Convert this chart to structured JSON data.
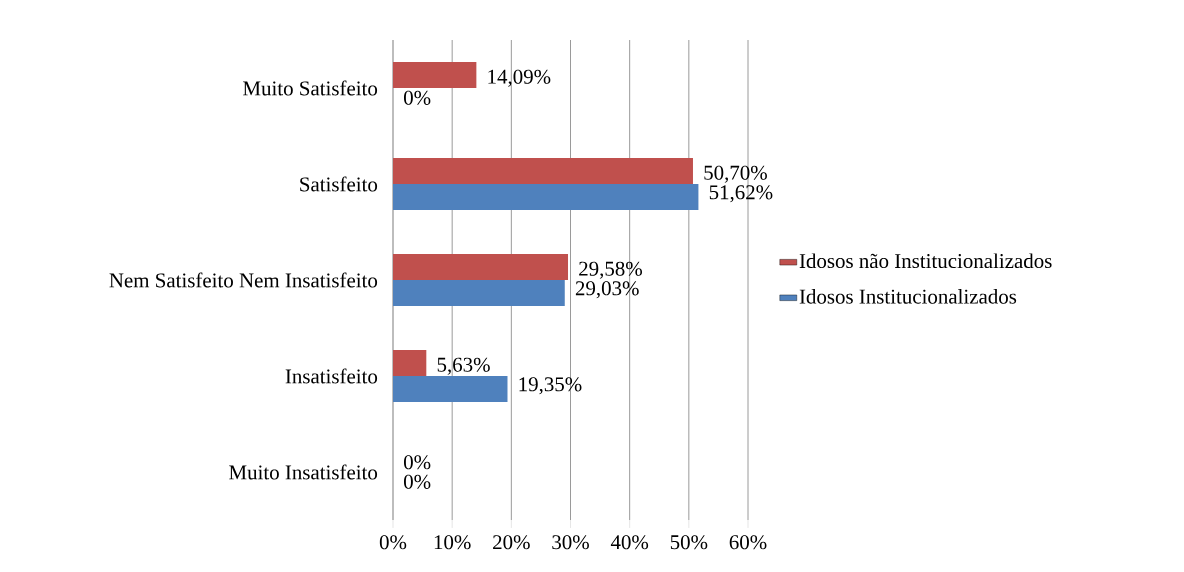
{
  "chart_data": {
    "type": "bar",
    "orientation": "horizontal",
    "categories": [
      "Muito Satisfeito",
      "Satisfeito",
      "Nem Satisfeito Nem Insatisfeito",
      "Insatisfeito",
      "Muito Insatisfeito"
    ],
    "series": [
      {
        "name": "Idosos não Institucionalizados",
        "color": "#c0504d",
        "values": [
          14.09,
          50.7,
          29.58,
          5.63,
          0
        ],
        "value_labels": [
          "14,09%",
          "50,70%",
          "29,58%",
          "5,63%",
          "0%"
        ]
      },
      {
        "name": "Idosos Institucionalizados",
        "color": "#4f81bd",
        "values": [
          0,
          51.62,
          29.03,
          19.35,
          0
        ],
        "value_labels": [
          "0%",
          "51,62%",
          "29,03%",
          "19,35%",
          "0%"
        ]
      }
    ],
    "xlim": [
      0,
      60
    ],
    "xticks": [
      {
        "value": 0,
        "label": "0%"
      },
      {
        "value": 10,
        "label": "10%"
      },
      {
        "value": 20,
        "label": "20%"
      },
      {
        "value": 30,
        "label": "30%"
      },
      {
        "value": 40,
        "label": "40%"
      },
      {
        "value": 50,
        "label": "50%"
      },
      {
        "value": 60,
        "label": "60%"
      }
    ],
    "grid": "x",
    "legend": "right"
  }
}
